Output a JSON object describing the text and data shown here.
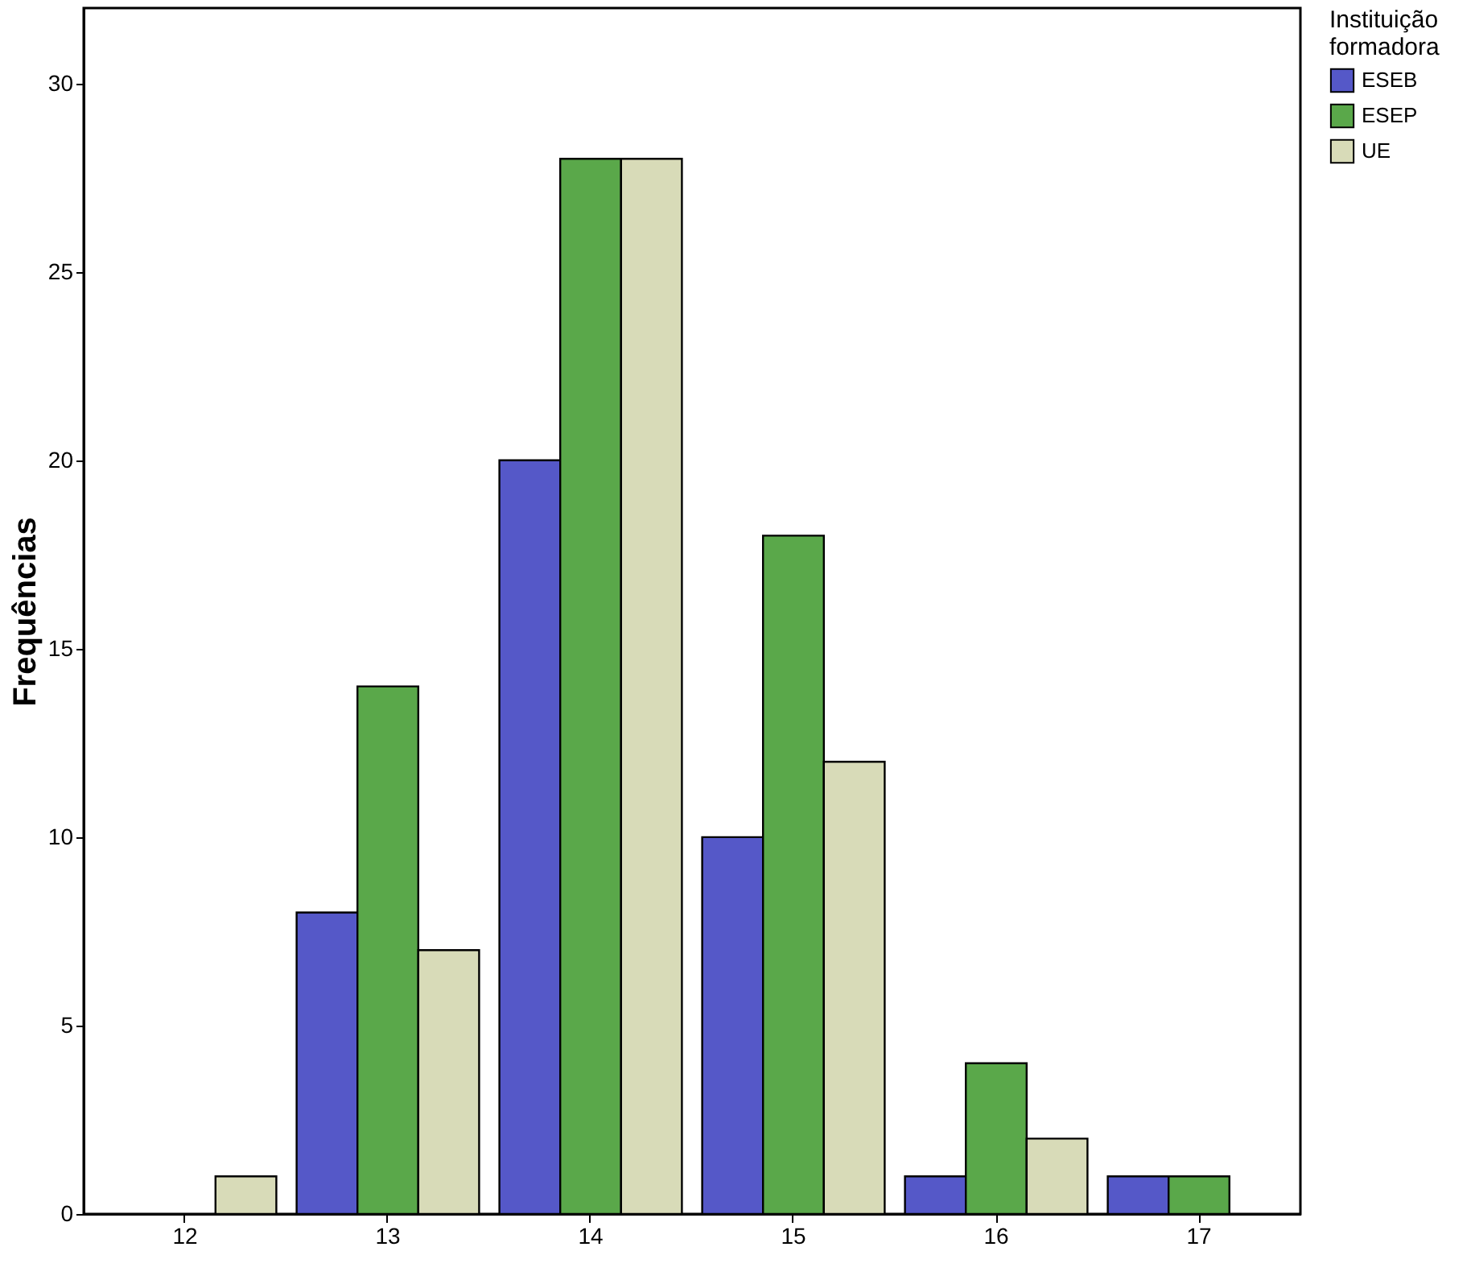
{
  "chart_data": {
    "type": "bar",
    "ylabel": "Frequências",
    "legend_title": "Instituição formadora",
    "legend": "top right",
    "grid": false,
    "categories": [
      "12",
      "13",
      "14",
      "15",
      "16",
      "17"
    ],
    "series": [
      {
        "name": "ESEB",
        "color": "#5558c8",
        "values": [
          null,
          8,
          20,
          10,
          1,
          1
        ]
      },
      {
        "name": "ESEP",
        "color": "#5aa84a",
        "values": [
          null,
          14,
          28,
          18,
          4,
          1
        ]
      },
      {
        "name": "UE",
        "color": "#d8dbb8",
        "values": [
          1,
          7,
          28,
          12,
          2,
          null
        ]
      }
    ],
    "ylim": [
      0,
      32
    ],
    "yticks": [
      0,
      5,
      10,
      15,
      20,
      25,
      30
    ]
  }
}
